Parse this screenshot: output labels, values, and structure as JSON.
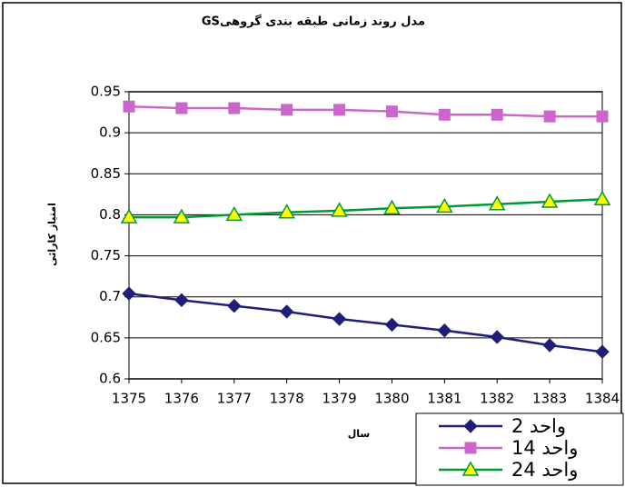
{
  "chart_data": {
    "type": "line",
    "title": "مدل روند زمانی طبقه بندی گروهیGS",
    "x_label": "سال",
    "y_label": "امتیاز کارائی",
    "x": [
      1375,
      1376,
      1377,
      1378,
      1379,
      1380,
      1381,
      1382,
      1383,
      1384
    ],
    "xlim": [
      1375,
      1384
    ],
    "xticks": [
      1375,
      1376,
      1377,
      1378,
      1379,
      1380,
      1381,
      1382,
      1383,
      1384
    ],
    "ylim": [
      0.6,
      0.95
    ],
    "yticks": [
      0.6,
      0.65,
      0.7,
      0.75,
      0.8,
      0.85,
      0.9,
      0.95
    ],
    "grid": true,
    "legend": "bottom-right",
    "series": [
      {
        "name": "واحد 2",
        "color": "#1f1f7a",
        "marker": "diamond",
        "values": [
          0.704,
          0.696,
          0.689,
          0.682,
          0.673,
          0.666,
          0.659,
          0.651,
          0.641,
          0.633
        ]
      },
      {
        "name": "واحد 14",
        "color": "#cc66cc",
        "marker": "square",
        "values": [
          0.932,
          0.93,
          0.93,
          0.928,
          0.928,
          0.926,
          0.922,
          0.922,
          0.92,
          0.92
        ]
      },
      {
        "name": "واحد 24",
        "color": "#009933",
        "marker": "triangle",
        "values": [
          0.797,
          0.797,
          0.8,
          0.803,
          0.805,
          0.808,
          0.81,
          0.813,
          0.816,
          0.819
        ]
      }
    ]
  }
}
